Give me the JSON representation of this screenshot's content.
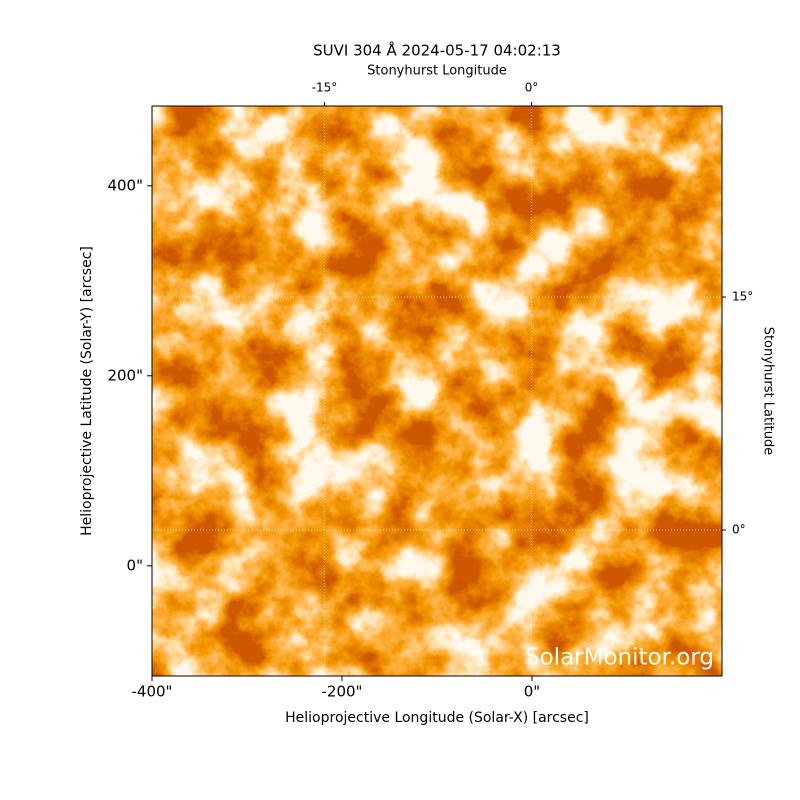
{
  "chart_data": {
    "type": "image",
    "title": "SUVI 304 Å 2024-05-17 04:02:13",
    "x_label": "Helioprojective Longitude (Solar-X) [arcsec]",
    "y_label": "Helioprojective Latitude (Solar-Y) [arcsec]",
    "x2_label": "Stonyhurst Longitude",
    "y2_label": "Stonyhurst Latitude",
    "watermark": "SolarMonitor.org",
    "xlim": [
      -400,
      200
    ],
    "ylim": [
      -116,
      484
    ],
    "xticks": [
      {
        "value": -400,
        "label": "-400\""
      },
      {
        "value": -200,
        "label": "-200\""
      },
      {
        "value": 0,
        "label": "0\""
      }
    ],
    "yticks": [
      {
        "value": 0,
        "label": "0\""
      },
      {
        "value": 200,
        "label": "200\""
      },
      {
        "value": 400,
        "label": "400\""
      }
    ],
    "x2lim": [
      -27.5,
      13.8
    ],
    "x2ticks": [
      {
        "value": -15,
        "label": "-15°"
      },
      {
        "value": 0,
        "label": "0°"
      }
    ],
    "y2lim": [
      -9.4,
      27.3
    ],
    "y2ticks": [
      {
        "value": 0,
        "label": "0°"
      },
      {
        "value": 15,
        "label": "15°"
      }
    ],
    "grid": true
  }
}
